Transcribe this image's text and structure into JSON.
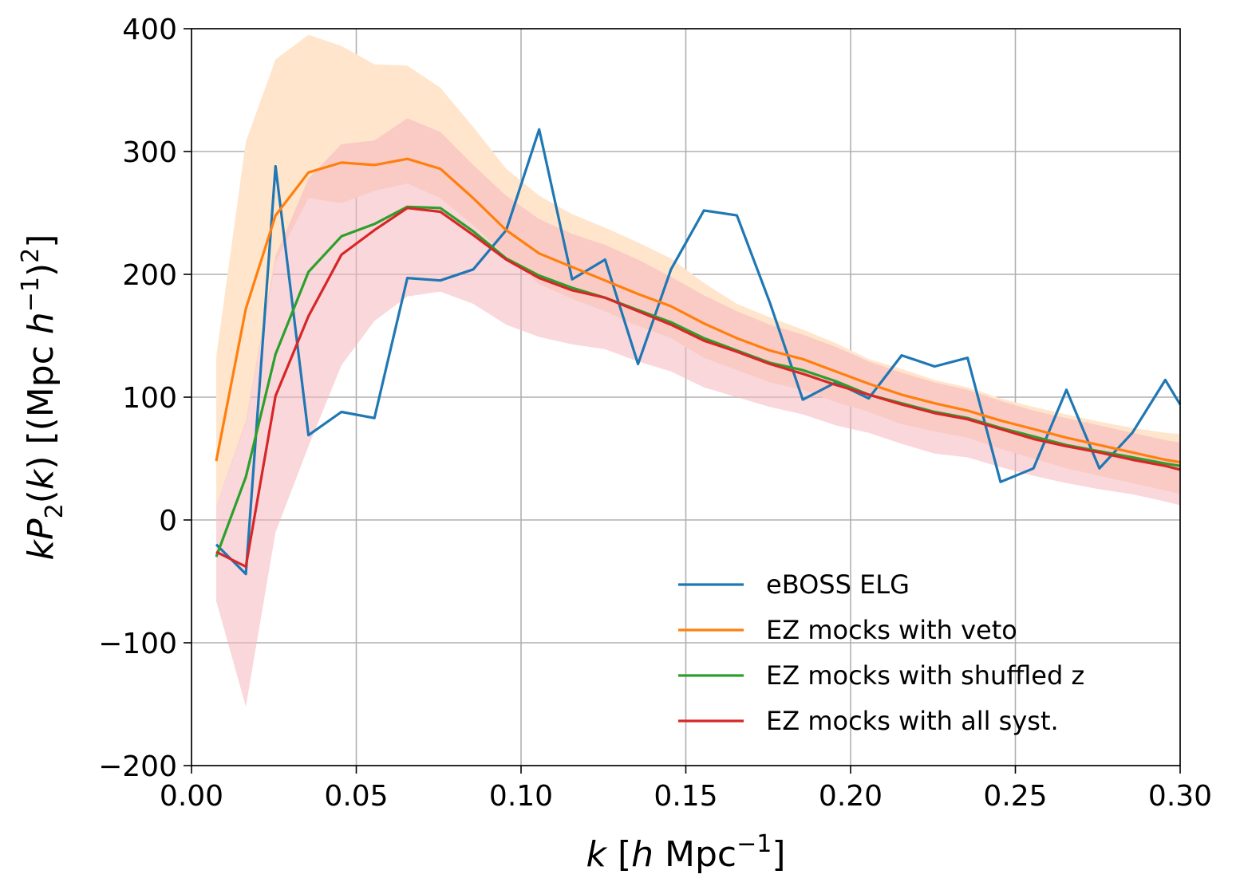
{
  "chart_data": {
    "type": "line",
    "title": "",
    "xlabel": "k [h Mpc^-1]",
    "ylabel": "kP2(k) [(Mpc h^-1)^2]",
    "xlim": [
      0.0,
      0.3
    ],
    "ylim": [
      -200,
      400
    ],
    "xticks": [
      0.0,
      0.05,
      0.1,
      0.15,
      0.2,
      0.25,
      0.3
    ],
    "xtick_labels": [
      "0.00",
      "0.05",
      "0.10",
      "0.15",
      "0.20",
      "0.25",
      "0.30"
    ],
    "yticks": [
      -200,
      -100,
      0,
      100,
      200,
      300,
      400
    ],
    "ytick_labels": [
      "−200",
      "−100",
      "0",
      "100",
      "200",
      "300",
      "400"
    ],
    "grid": true,
    "legend_position": "lower-right",
    "x": [
      0.0075,
      0.0165,
      0.0255,
      0.0355,
      0.0455,
      0.0555,
      0.0655,
      0.0755,
      0.0855,
      0.0955,
      0.1055,
      0.1155,
      0.1255,
      0.1355,
      0.1455,
      0.1555,
      0.1655,
      0.1755,
      0.1855,
      0.1955,
      0.2055,
      0.2155,
      0.2255,
      0.2355,
      0.2455,
      0.2555,
      0.2655,
      0.2755,
      0.2855,
      0.2955,
      0.3
    ],
    "series": [
      {
        "name": "eBOSS ELG",
        "color": "#1f77b4",
        "values": [
          -20,
          -44,
          288,
          69,
          88,
          83,
          197,
          195,
          204,
          236,
          318,
          196,
          212,
          127,
          204,
          252,
          248,
          177,
          98,
          112,
          99,
          134,
          125,
          132,
          31,
          42,
          106,
          42,
          71,
          114,
          94
        ]
      },
      {
        "name": "EZ mocks with veto",
        "color": "#ff7f0e",
        "values": [
          48,
          172,
          248,
          283,
          291,
          289,
          294,
          286,
          262,
          236,
          217,
          206,
          195,
          184,
          174,
          160,
          148,
          138,
          131,
          121,
          111,
          102,
          95,
          89,
          81,
          74,
          67,
          61,
          55,
          49,
          47
        ],
        "band_lower": [
          12,
          78,
          210,
          262,
          258,
          268,
          274,
          262,
          240,
          215,
          192,
          180,
          170,
          158,
          148,
          132,
          122,
          112,
          106,
          96,
          88,
          78,
          72,
          67,
          58,
          50,
          42,
          36,
          30,
          24,
          21
        ],
        "band_upper": [
          133,
          308,
          375,
          395,
          386,
          371,
          370,
          352,
          320,
          286,
          264,
          249,
          238,
          226,
          213,
          193,
          176,
          165,
          155,
          144,
          131,
          123,
          114,
          108,
          99,
          92,
          86,
          80,
          75,
          71,
          70
        ],
        "band_color": "#ffe5cc"
      },
      {
        "name": "EZ mocks with shuffled z",
        "color": "#2ca02c",
        "values": [
          -30,
          35,
          135,
          202,
          231,
          241,
          255,
          254,
          235,
          213,
          199,
          189,
          181,
          171,
          161,
          148,
          138,
          128,
          122,
          113,
          102,
          95,
          88,
          83,
          75,
          68,
          61,
          56,
          51,
          46,
          44
        ]
      },
      {
        "name": "EZ mocks with all syst.",
        "color": "#d62728",
        "values": [
          -26,
          -38,
          101,
          166,
          216,
          236,
          254,
          251,
          232,
          212,
          197,
          187,
          181,
          170,
          159,
          146,
          137,
          127,
          119,
          110,
          102,
          94,
          87,
          82,
          74,
          66,
          60,
          55,
          49,
          44,
          41
        ],
        "band_lower": [
          -66,
          -152,
          -10,
          60,
          126,
          162,
          182,
          186,
          176,
          159,
          149,
          143,
          139,
          129,
          121,
          108,
          100,
          92,
          86,
          77,
          71,
          62,
          54,
          51,
          43,
          36,
          30,
          25,
          21,
          15,
          12
        ],
        "band_upper": [
          12,
          80,
          215,
          278,
          306,
          309,
          327,
          316,
          289,
          264,
          245,
          233,
          224,
          212,
          198,
          183,
          170,
          159,
          151,
          141,
          129,
          120,
          112,
          106,
          97,
          89,
          83,
          77,
          71,
          65,
          63
        ],
        "band_color": "#f5b6bd"
      }
    ]
  }
}
